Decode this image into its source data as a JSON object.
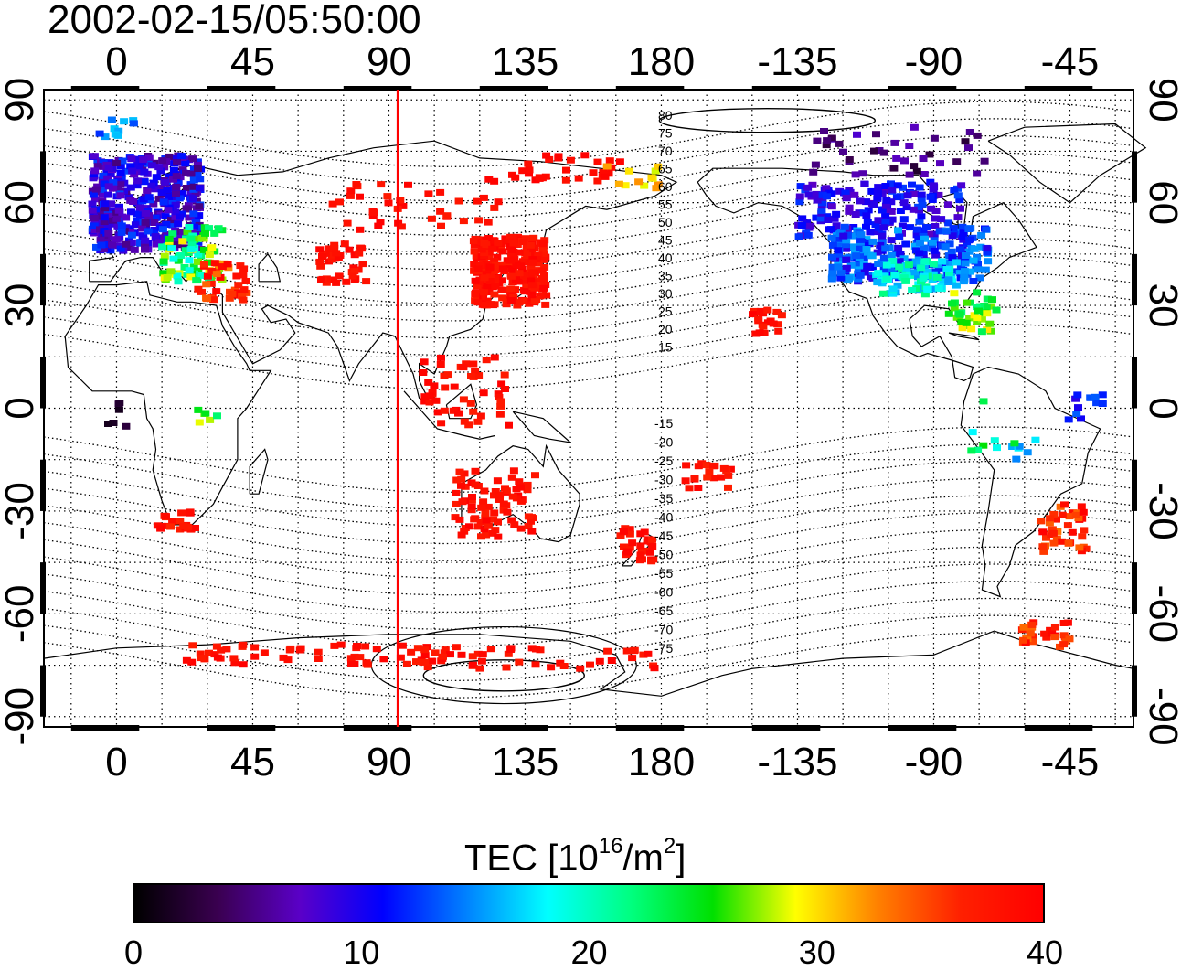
{
  "title": "2002-02-15/05:50:00",
  "map": {
    "lon_ticks_labels": [
      "0",
      "45",
      "90",
      "135",
      "180",
      "-135",
      "-90",
      "-45"
    ],
    "lat_ticks_labels": [
      "90",
      "60",
      "30",
      "0",
      "-30",
      "-60",
      "-90"
    ],
    "lon_ticks": [
      0,
      45,
      90,
      135,
      180,
      225,
      270,
      315
    ],
    "lat_ticks": [
      90,
      60,
      30,
      0,
      -30,
      -60,
      -90
    ],
    "lon_range": [
      -24,
      336
    ],
    "lat_range": [
      -93,
      93
    ],
    "grid": "dotted, every 15 degrees",
    "marker_longitude": 93,
    "marker_color": "#ff0000",
    "contour_labels_north": [
      "80",
      "75",
      "70",
      "65",
      "60",
      "55",
      "50",
      "45",
      "40",
      "35",
      "30",
      "25",
      "20",
      "15"
    ],
    "contour_labels_south": [
      "-15",
      "-20",
      "-25",
      "-30",
      "-35",
      "-40",
      "-45",
      "-50",
      "-55",
      "-60",
      "-65",
      "-70",
      "-75"
    ]
  },
  "colorbar": {
    "title_prefix": "TEC  [10",
    "title_exp": "16",
    "title_mid": "/m",
    "title_exp2": "2",
    "title_suffix": "]",
    "min": 0,
    "max": 40,
    "tick_labels": [
      "0",
      "10",
      "20",
      "30",
      "40"
    ],
    "colors": [
      "#000000",
      "#3a0050",
      "#5a00c8",
      "#0000ff",
      "#0080ff",
      "#00ffff",
      "#00ff80",
      "#00e000",
      "#ffff00",
      "#ff8000",
      "#ff2000",
      "#ff0000"
    ]
  }
}
